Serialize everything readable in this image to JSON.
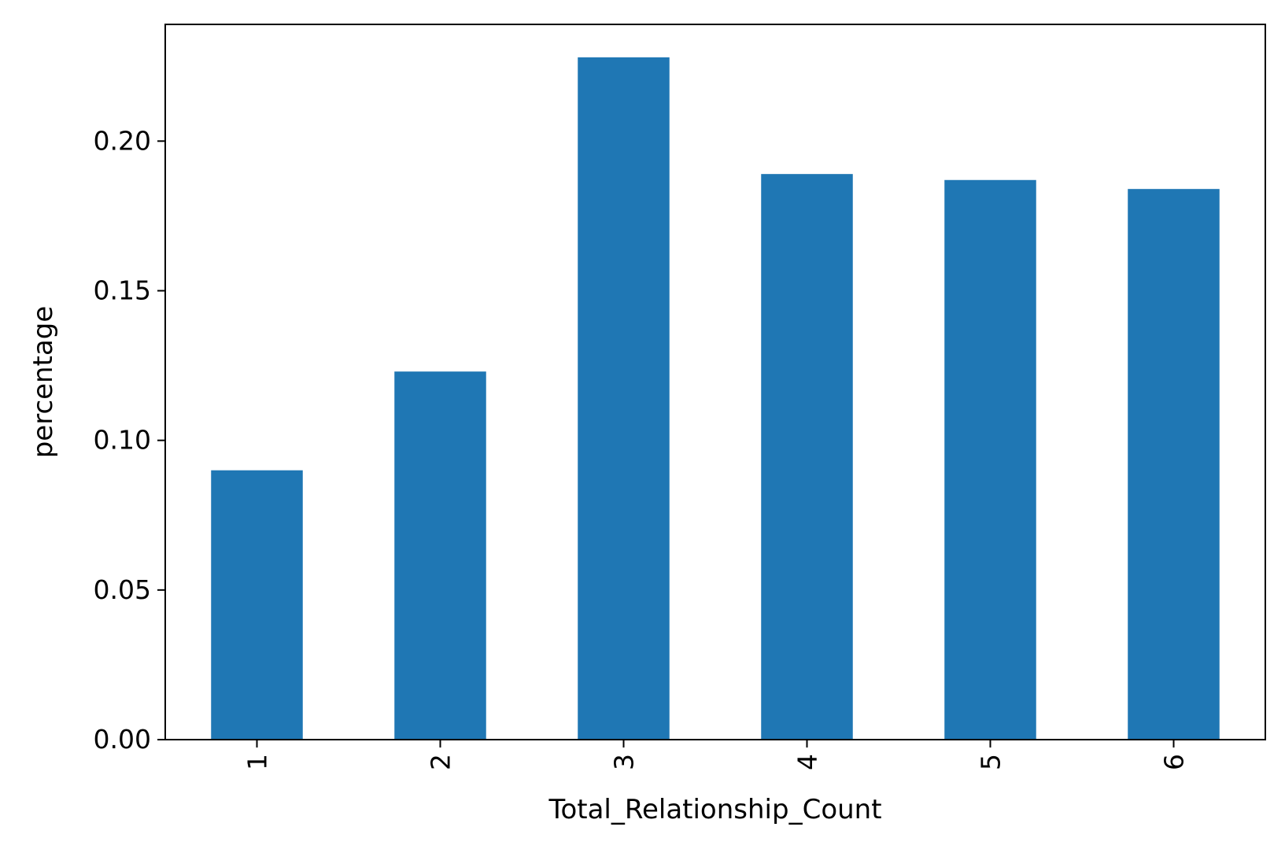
{
  "chart_data": {
    "type": "bar",
    "title": "",
    "xlabel": "Total_Relationship_Count",
    "ylabel": "percentage",
    "categories": [
      "1",
      "2",
      "3",
      "4",
      "5",
      "6"
    ],
    "values": [
      0.09,
      0.123,
      0.228,
      0.189,
      0.187,
      0.184
    ],
    "ylim": [
      0,
      0.239
    ],
    "yticks": [
      0.0,
      0.05,
      0.1,
      0.15,
      0.2
    ],
    "ytick_labels": [
      "0.00",
      "0.05",
      "0.10",
      "0.15",
      "0.20"
    ],
    "xtick_rotation": "vertical",
    "legend": "none",
    "grid": false,
    "colors": {
      "bar": "#1f77b4",
      "axis": "#000000",
      "background": "#ffffff"
    }
  }
}
